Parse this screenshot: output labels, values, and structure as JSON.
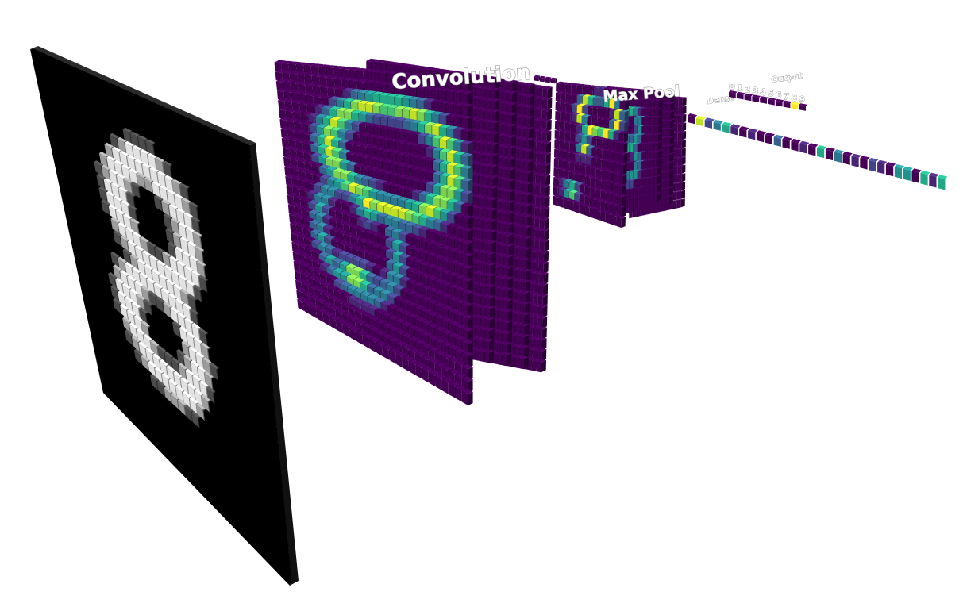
{
  "layers": {
    "convolution": "Convolution",
    "maxpool": "Max Pool",
    "dense": "Dense",
    "output": "Output"
  },
  "output_digits": [
    "0",
    "1",
    "2",
    "3",
    "4",
    "5",
    "6",
    "7",
    "8",
    "9"
  ],
  "colors": {
    "background": "#ffffff",
    "input_bg": "#000000",
    "input_ink": "#e6e6e6",
    "viridis": [
      "#440154",
      "#482475",
      "#414487",
      "#355f8d",
      "#2a788e",
      "#21918c",
      "#22a884",
      "#44bf70",
      "#7ad151",
      "#bddf26",
      "#fde725"
    ]
  }
}
